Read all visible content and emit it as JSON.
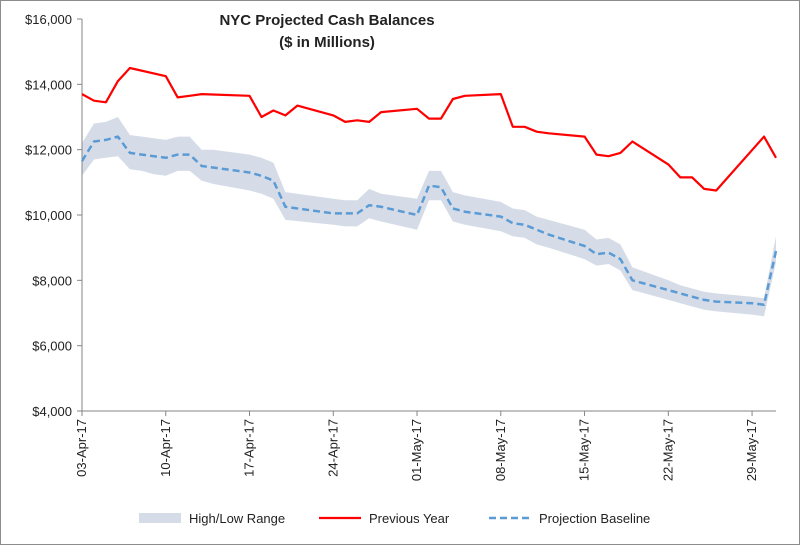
{
  "chart_data": {
    "type": "line",
    "title": [
      "NYC Projected Cash Balances",
      "($ in Millions)"
    ],
    "xlabel": "",
    "ylabel": "",
    "ylim": [
      4000,
      16000
    ],
    "y_ticks": [
      "$4,000",
      "$6,000",
      "$8,000",
      "$10,000",
      "$12,000",
      "$14,000",
      "$16,000"
    ],
    "y_tick_values": [
      4000,
      6000,
      8000,
      10000,
      12000,
      14000,
      16000
    ],
    "x_range": [
      "2017-04-03",
      "2017-05-31"
    ],
    "x_ticks": [
      {
        "label": "03-Apr-17",
        "date": "2017-04-03"
      },
      {
        "label": "10-Apr-17",
        "date": "2017-04-10"
      },
      {
        "label": "17-Apr-17",
        "date": "2017-04-17"
      },
      {
        "label": "24-Apr-17",
        "date": "2017-04-24"
      },
      {
        "label": "01-May-17",
        "date": "2017-05-01"
      },
      {
        "label": "08-May-17",
        "date": "2017-05-08"
      },
      {
        "label": "15-May-17",
        "date": "2017-05-15"
      },
      {
        "label": "22-May-17",
        "date": "2017-05-22"
      },
      {
        "label": "29-May-17",
        "date": "2017-05-29"
      }
    ],
    "grid": false,
    "legend_position": "bottom",
    "series": [
      {
        "name": "High/Low Range",
        "kind": "band",
        "color": "#d6dce7",
        "x": [
          "2017-04-03",
          "2017-04-04",
          "2017-04-05",
          "2017-04-06",
          "2017-04-07",
          "2017-04-08",
          "2017-04-09",
          "2017-04-10",
          "2017-04-11",
          "2017-04-12",
          "2017-04-13",
          "2017-04-14",
          "2017-04-17",
          "2017-04-18",
          "2017-04-19",
          "2017-04-20",
          "2017-04-24",
          "2017-04-25",
          "2017-04-26",
          "2017-04-27",
          "2017-04-28",
          "2017-05-01",
          "2017-05-02",
          "2017-05-03",
          "2017-05-04",
          "2017-05-05",
          "2017-05-08",
          "2017-05-09",
          "2017-05-10",
          "2017-05-11",
          "2017-05-12",
          "2017-05-15",
          "2017-05-16",
          "2017-05-17",
          "2017-05-18",
          "2017-05-19",
          "2017-05-22",
          "2017-05-23",
          "2017-05-24",
          "2017-05-25",
          "2017-05-26",
          "2017-05-29",
          "2017-05-30",
          "2017-05-31"
        ],
        "high": [
          12200,
          12800,
          12850,
          13000,
          12450,
          12400,
          12350,
          12300,
          12400,
          12400,
          12000,
          12000,
          11850,
          11750,
          11600,
          10700,
          10500,
          10450,
          10450,
          10800,
          10650,
          10500,
          11350,
          11350,
          10700,
          10600,
          10400,
          10200,
          10150,
          9950,
          9850,
          9550,
          9250,
          9300,
          9100,
          8400,
          8000,
          7850,
          7750,
          7650,
          7600,
          7500,
          7450,
          9350
        ],
        "low": [
          11200,
          11700,
          11750,
          11800,
          11400,
          11350,
          11250,
          11200,
          11350,
          11350,
          11050,
          10950,
          10750,
          10650,
          10500,
          9850,
          9700,
          9650,
          9650,
          9900,
          9800,
          9550,
          10450,
          10450,
          9800,
          9700,
          9500,
          9350,
          9300,
          9100,
          9000,
          8650,
          8450,
          8500,
          8300,
          7700,
          7400,
          7300,
          7200,
          7100,
          7050,
          6950,
          6900,
          8550
        ]
      },
      {
        "name": "Previous Year",
        "kind": "line",
        "color": "#ff0000",
        "x": [
          "2017-04-03",
          "2017-04-04",
          "2017-04-05",
          "2017-04-06",
          "2017-04-07",
          "2017-04-10",
          "2017-04-11",
          "2017-04-12",
          "2017-04-13",
          "2017-04-17",
          "2017-04-18",
          "2017-04-19",
          "2017-04-20",
          "2017-04-21",
          "2017-04-24",
          "2017-04-25",
          "2017-04-26",
          "2017-04-27",
          "2017-04-28",
          "2017-05-01",
          "2017-05-02",
          "2017-05-03",
          "2017-05-04",
          "2017-05-05",
          "2017-05-08",
          "2017-05-09",
          "2017-05-10",
          "2017-05-11",
          "2017-05-12",
          "2017-05-15",
          "2017-05-16",
          "2017-05-17",
          "2017-05-18",
          "2017-05-19",
          "2017-05-22",
          "2017-05-23",
          "2017-05-24",
          "2017-05-25",
          "2017-05-26",
          "2017-05-30",
          "2017-05-31"
        ],
        "values": [
          13700,
          13500,
          13450,
          14100,
          14500,
          14250,
          13600,
          13650,
          13700,
          13650,
          13000,
          13200,
          13050,
          13350,
          13050,
          12850,
          12900,
          12850,
          13150,
          13250,
          12950,
          12950,
          13550,
          13650,
          13700,
          12700,
          12700,
          12550,
          12500,
          12400,
          11850,
          11800,
          11900,
          12250,
          11550,
          11150,
          11150,
          10800,
          10750,
          12400,
          11750
        ]
      },
      {
        "name": "Projection Baseline",
        "kind": "line",
        "dashed": true,
        "color": "#5b9bd5",
        "x": [
          "2017-04-03",
          "2017-04-04",
          "2017-04-05",
          "2017-04-06",
          "2017-04-07",
          "2017-04-08",
          "2017-04-09",
          "2017-04-10",
          "2017-04-11",
          "2017-04-12",
          "2017-04-13",
          "2017-04-14",
          "2017-04-17",
          "2017-04-18",
          "2017-04-19",
          "2017-04-20",
          "2017-04-24",
          "2017-04-25",
          "2017-04-26",
          "2017-04-27",
          "2017-04-28",
          "2017-05-01",
          "2017-05-02",
          "2017-05-03",
          "2017-05-04",
          "2017-05-05",
          "2017-05-08",
          "2017-05-09",
          "2017-05-10",
          "2017-05-11",
          "2017-05-12",
          "2017-05-15",
          "2017-05-16",
          "2017-05-17",
          "2017-05-18",
          "2017-05-19",
          "2017-05-22",
          "2017-05-23",
          "2017-05-24",
          "2017-05-25",
          "2017-05-26",
          "2017-05-29",
          "2017-05-30",
          "2017-05-31"
        ],
        "values": [
          11650,
          12250,
          12300,
          12400,
          11900,
          11850,
          11800,
          11750,
          11850,
          11850,
          11500,
          11450,
          11300,
          11200,
          11050,
          10250,
          10050,
          10050,
          10050,
          10300,
          10250,
          10000,
          10900,
          10850,
          10200,
          10100,
          9950,
          9750,
          9700,
          9550,
          9400,
          9050,
          8800,
          8850,
          8650,
          8000,
          7700,
          7600,
          7500,
          7400,
          7350,
          7300,
          7250,
          8900
        ]
      }
    ]
  }
}
